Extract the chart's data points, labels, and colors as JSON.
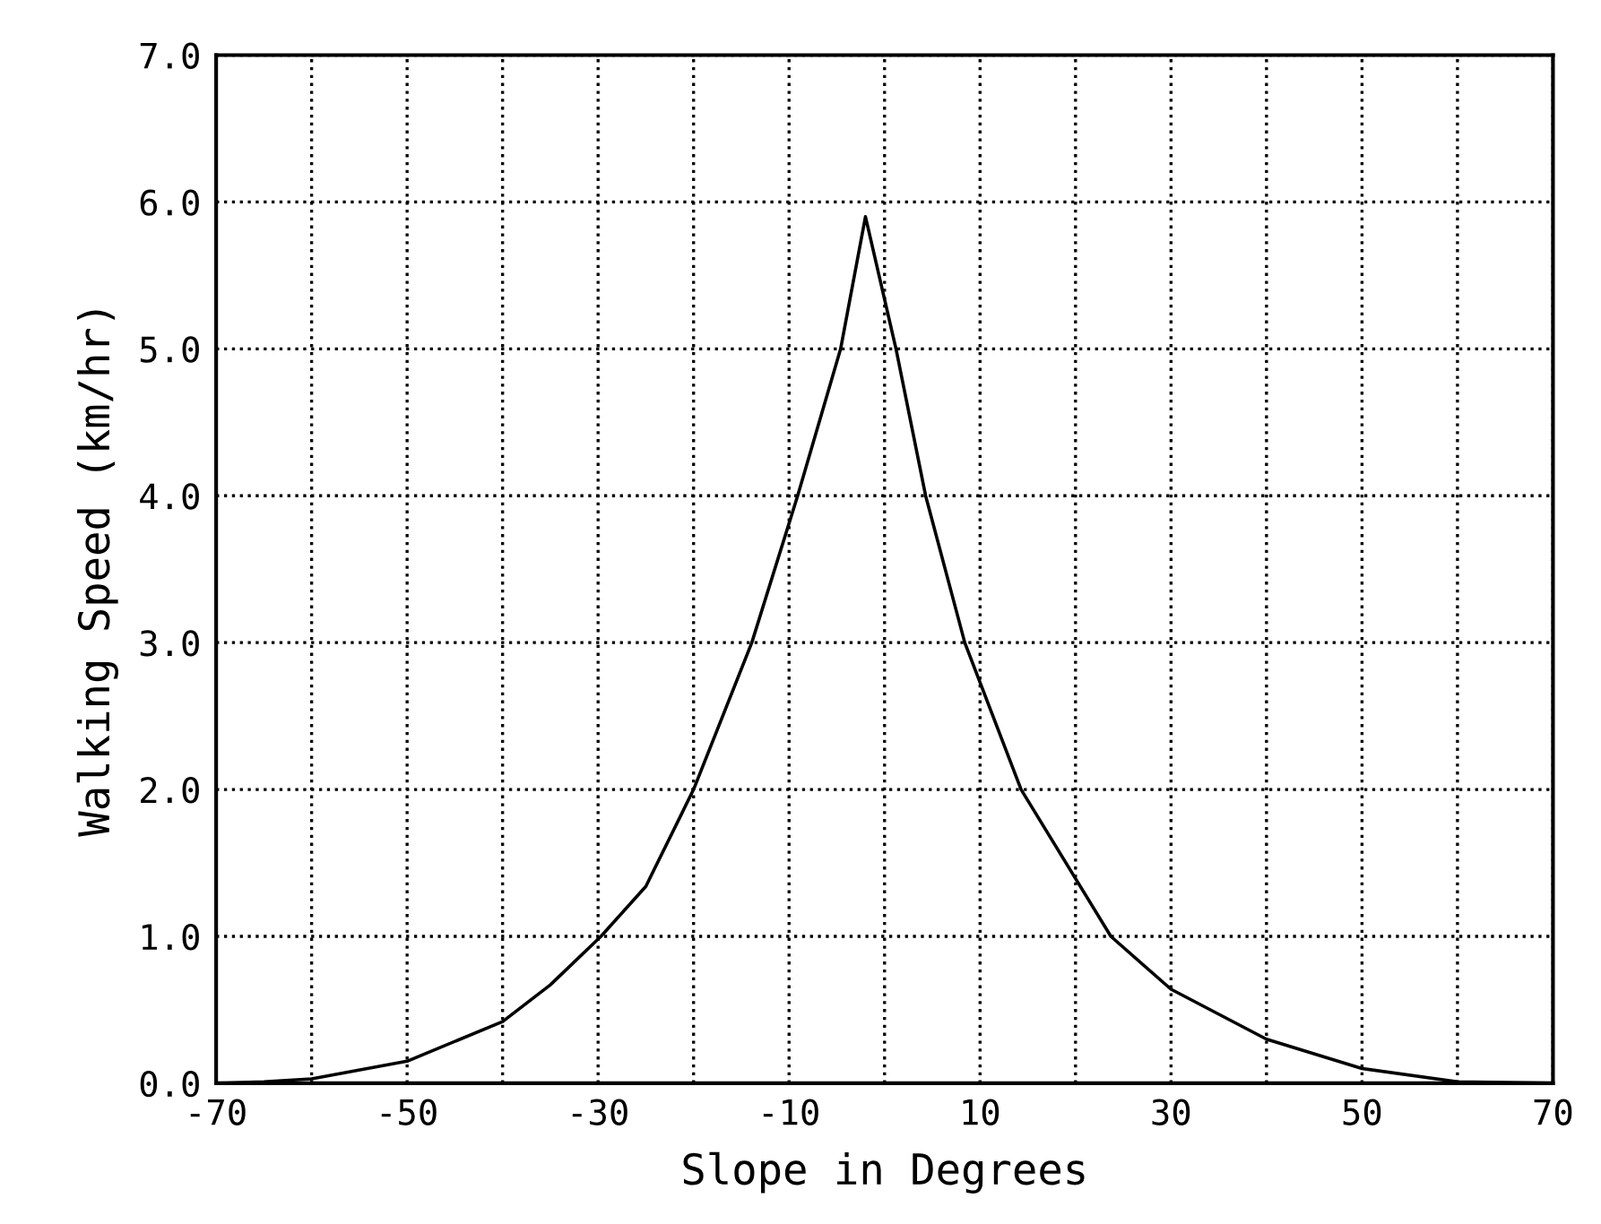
{
  "chart_data": {
    "type": "line",
    "xlabel": "Slope in Degrees",
    "ylabel": "Walking Speed (km/hr)",
    "x": [
      -70,
      -65,
      -60,
      -50,
      -40,
      -35,
      -29.7,
      -25,
      -20,
      -13.9,
      -9.1,
      -4.6,
      -2,
      1.2,
      4.3,
      8.4,
      14.3,
      23.7,
      30,
      40,
      50,
      60,
      70
    ],
    "series": [
      {
        "color": "#000000",
        "values": [
          0,
          0.01,
          0.03,
          0.15,
          0.42,
          0.67,
          1.0,
          1.34,
          2.0,
          3.0,
          4.0,
          5.0,
          5.9,
          5.0,
          4.0,
          3.0,
          2.0,
          1.0,
          0.64,
          0.3,
          0.1,
          0.01,
          0
        ]
      }
    ],
    "xlim": [
      -70,
      70
    ],
    "ylim": [
      0,
      7
    ],
    "xticks": [
      -70,
      {
        "value": -60,
        "label": null
      },
      -50,
      {
        "value": -40,
        "label": null
      },
      -30,
      {
        "value": -20,
        "label": null
      },
      -10,
      {
        "value": 0,
        "label": null
      },
      10,
      {
        "value": 20,
        "label": null
      },
      30,
      {
        "value": 40,
        "label": null
      },
      50,
      {
        "value": 60,
        "label": null
      },
      70
    ],
    "yticks": [
      {
        "value": 0,
        "label": "0.0"
      },
      {
        "value": 1,
        "label": "1.0"
      },
      {
        "value": 2,
        "label": "2.0"
      },
      {
        "value": 3,
        "label": "3.0"
      },
      {
        "value": 4,
        "label": "4.0"
      },
      {
        "value": 5,
        "label": "5.0"
      },
      {
        "value": 6,
        "label": "6.0"
      },
      {
        "value": 7,
        "label": "7.0"
      }
    ],
    "grid": true,
    "marker": "none",
    "line_style": "solid"
  }
}
